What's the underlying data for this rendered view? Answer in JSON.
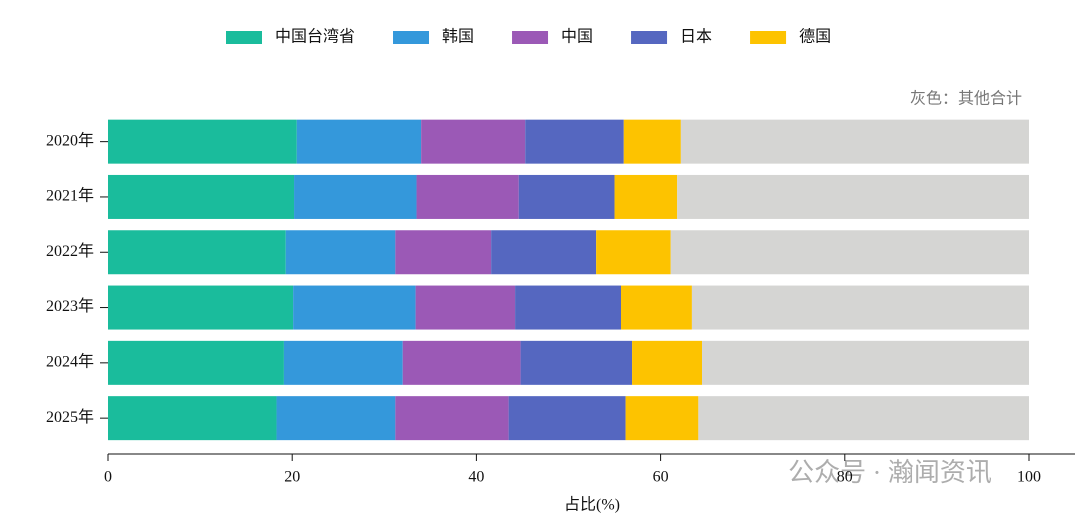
{
  "chart_data": {
    "type": "stacked-barh",
    "categories": [
      "2020年",
      "2021年",
      "2022年",
      "2023年",
      "2024年",
      "2025年"
    ],
    "series": [
      {
        "name": "中国台湾省",
        "color": "#1abc9c",
        "values": [
          20.5,
          20.2,
          19.3,
          20.1,
          19.1,
          18.3
        ]
      },
      {
        "name": "韩国",
        "color": "#3498db",
        "values": [
          13.5,
          13.3,
          11.9,
          13.3,
          12.9,
          12.9
        ]
      },
      {
        "name": "中国",
        "color": "#9b59b6",
        "values": [
          11.3,
          11.1,
          10.4,
          10.8,
          12.8,
          12.3
        ]
      },
      {
        "name": "日本",
        "color": "#5567c0",
        "values": [
          10.7,
          10.4,
          11.4,
          11.5,
          12.1,
          12.7
        ]
      },
      {
        "name": "德国",
        "color": "#fdc300",
        "values": [
          6.2,
          6.8,
          8.1,
          7.7,
          7.6,
          7.9
        ]
      },
      {
        "color": "#d5d5d3",
        "values": [
          37.8,
          38.2,
          38.9,
          36.6,
          35.5,
          35.9
        ]
      }
    ],
    "annotation": "灰色：其他合计",
    "x_label": "占比(%)",
    "xlim": [
      0,
      100
    ],
    "xticks": [
      0,
      20,
      40,
      60,
      80,
      100
    ],
    "watermark": "公众号 · 瀚闻资讯"
  }
}
